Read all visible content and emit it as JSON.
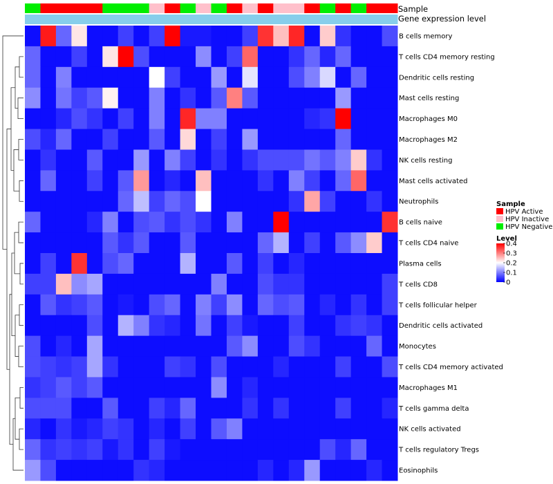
{
  "chart_data": {
    "type": "heatmap",
    "annotations": {
      "sample_label": "Sample",
      "expression_label": "Gene expression level"
    },
    "sample_groups": [
      "HPV Negative",
      "HPV Active",
      "HPV Active",
      "HPV Active",
      "HPV Active",
      "HPV Negative",
      "HPV Negative",
      "HPV Negative",
      "HPV Inactive",
      "HPV Active",
      "HPV Negative",
      "HPV Inactive",
      "HPV Negative",
      "HPV Active",
      "HPV Inactive",
      "HPV Active",
      "HPV Inactive",
      "HPV Inactive",
      "HPV Active",
      "HPV Negative",
      "HPV Active",
      "HPV Negative",
      "HPV Active",
      "HPV Active"
    ],
    "rows": [
      {
        "name": "B cells memory",
        "values": [
          0.01,
          0.38,
          0.08,
          0.22,
          0.01,
          0.01,
          0.05,
          0.01,
          0.05,
          0.4,
          0.02,
          0.02,
          0.01,
          0.01,
          0.05,
          0.36,
          0.25,
          0.37,
          0.01,
          0.24,
          0.04,
          0.01,
          0.01,
          0.06
        ]
      },
      {
        "name": "T cells CD4 memory resting",
        "values": [
          0.08,
          0.01,
          0.01,
          0.05,
          0.01,
          0.22,
          0.4,
          0.06,
          0.01,
          0.01,
          0.01,
          0.11,
          0.01,
          0.05,
          0.32,
          0.01,
          0.01,
          0.04,
          0.08,
          0.03,
          0.08,
          0.01,
          0.01,
          0.01
        ]
      },
      {
        "name": "Dendritic cells resting",
        "values": [
          0.08,
          0.01,
          0.1,
          0.01,
          0.01,
          0.01,
          0.01,
          0.01,
          0.2,
          0.05,
          0.01,
          0.01,
          0.12,
          0.01,
          0.18,
          0.01,
          0.01,
          0.06,
          0.1,
          0.17,
          0.01,
          0.08,
          0.01,
          0.01
        ]
      },
      {
        "name": "Mast cells resting",
        "values": [
          0.11,
          0.01,
          0.09,
          0.05,
          0.07,
          0.21,
          0.01,
          0.01,
          0.1,
          0.01,
          0.04,
          0.01,
          0.07,
          0.3,
          0.07,
          0.01,
          0.01,
          0.01,
          0.01,
          0.01,
          0.12,
          0.01,
          0.01,
          0.01
        ]
      },
      {
        "name": "Macrophages M0",
        "values": [
          0.01,
          0.01,
          0.03,
          0.06,
          0.04,
          0.01,
          0.05,
          0.01,
          0.1,
          0.01,
          0.37,
          0.1,
          0.1,
          0.01,
          0.01,
          0.01,
          0.01,
          0.01,
          0.03,
          0.04,
          0.4,
          0.01,
          0.01,
          0.01
        ]
      },
      {
        "name": "Macrophages M2",
        "values": [
          0.06,
          0.03,
          0.08,
          0.01,
          0.01,
          0.05,
          0.01,
          0.01,
          0.07,
          0.01,
          0.23,
          0.01,
          0.05,
          0.01,
          0.12,
          0.01,
          0.01,
          0.01,
          0.01,
          0.01,
          0.08,
          0.01,
          0.01,
          0.01
        ]
      },
      {
        "name": "NK cells resting",
        "values": [
          0.01,
          0.04,
          0.01,
          0.01,
          0.07,
          0.01,
          0.01,
          0.12,
          0.01,
          0.1,
          0.05,
          0.01,
          0.04,
          0.01,
          0.04,
          0.06,
          0.06,
          0.06,
          0.09,
          0.07,
          0.1,
          0.24,
          0.04,
          0.01
        ]
      },
      {
        "name": "Mast cells activated",
        "values": [
          0.01,
          0.08,
          0.01,
          0.01,
          0.05,
          0.01,
          0.07,
          0.28,
          0.01,
          0.03,
          0.01,
          0.25,
          0.01,
          0.01,
          0.01,
          0.04,
          0.01,
          0.1,
          0.05,
          0.01,
          0.08,
          0.32,
          0.01,
          0.01
        ]
      },
      {
        "name": "Neutrophils",
        "values": [
          0.01,
          0.01,
          0.01,
          0.01,
          0.01,
          0.01,
          0.08,
          0.15,
          0.05,
          0.08,
          0.06,
          0.2,
          0.01,
          0.01,
          0.01,
          0.01,
          0.01,
          0.04,
          0.27,
          0.05,
          0.01,
          0.01,
          0.04,
          0.01
        ]
      },
      {
        "name": "B cells naive",
        "values": [
          0.08,
          0.01,
          0.01,
          0.01,
          0.03,
          0.1,
          0.01,
          0.06,
          0.07,
          0.04,
          0.06,
          0.04,
          0.01,
          0.1,
          0.01,
          0.01,
          0.4,
          0.01,
          0.01,
          0.01,
          0.01,
          0.01,
          0.01,
          0.36
        ]
      },
      {
        "name": "T cells CD4 naive",
        "values": [
          0.01,
          0.01,
          0.01,
          0.01,
          0.01,
          0.07,
          0.04,
          0.07,
          0.01,
          0.01,
          0.07,
          0.01,
          0.01,
          0.01,
          0.01,
          0.08,
          0.14,
          0.01,
          0.05,
          0.01,
          0.07,
          0.11,
          0.24,
          0.01
        ]
      },
      {
        "name": "Plasma cells",
        "values": [
          0.01,
          0.05,
          0.01,
          0.36,
          0.01,
          0.06,
          0.08,
          0.01,
          0.01,
          0.01,
          0.14,
          0.01,
          0.01,
          0.07,
          0.01,
          0.05,
          0.01,
          0.03,
          0.01,
          0.01,
          0.01,
          0.01,
          0.01,
          0.01
        ]
      },
      {
        "name": "T cells CD8",
        "values": [
          0.05,
          0.05,
          0.25,
          0.11,
          0.13,
          0.01,
          0.01,
          0.01,
          0.01,
          0.01,
          0.01,
          0.01,
          0.1,
          0.01,
          0.01,
          0.06,
          0.04,
          0.04,
          0.01,
          0.01,
          0.01,
          0.01,
          0.01,
          0.05
        ]
      },
      {
        "name": "T cells follicular helper",
        "values": [
          0.01,
          0.07,
          0.04,
          0.05,
          0.07,
          0.01,
          0.02,
          0.01,
          0.06,
          0.08,
          0.01,
          0.1,
          0.05,
          0.11,
          0.01,
          0.08,
          0.06,
          0.07,
          0.01,
          0.03,
          0.01,
          0.04,
          0.01,
          0.05
        ]
      },
      {
        "name": "Dendritic cells activated",
        "values": [
          0.01,
          0.01,
          0.01,
          0.01,
          0.06,
          0.01,
          0.14,
          0.1,
          0.04,
          0.03,
          0.01,
          0.09,
          0.01,
          0.05,
          0.02,
          0.01,
          0.01,
          0.05,
          0.01,
          0.01,
          0.04,
          0.05,
          0.04,
          0.01
        ]
      },
      {
        "name": "Monocytes",
        "values": [
          0.06,
          0.01,
          0.03,
          0.01,
          0.13,
          0.01,
          0.01,
          0.01,
          0.01,
          0.01,
          0.01,
          0.01,
          0.01,
          0.07,
          0.11,
          0.01,
          0.01,
          0.06,
          0.04,
          0.01,
          0.01,
          0.01,
          0.08,
          0.01
        ]
      },
      {
        "name": "T cells CD4 memory activated",
        "values": [
          0.06,
          0.05,
          0.04,
          0.05,
          0.13,
          0.04,
          0.01,
          0.01,
          0.01,
          0.05,
          0.04,
          0.01,
          0.06,
          0.01,
          0.01,
          0.01,
          0.03,
          0.01,
          0.01,
          0.01,
          0.05,
          0.01,
          0.01,
          0.06
        ]
      },
      {
        "name": "Macrophages M1",
        "values": [
          0.04,
          0.05,
          0.07,
          0.05,
          0.07,
          0.01,
          0.01,
          0.01,
          0.01,
          0.01,
          0.01,
          0.01,
          0.11,
          0.01,
          0.03,
          0.01,
          0.01,
          0.01,
          0.01,
          0.01,
          0.01,
          0.01,
          0.01,
          0.01
        ]
      },
      {
        "name": "T cells gamma delta",
        "values": [
          0.06,
          0.06,
          0.06,
          0.01,
          0.01,
          0.07,
          0.01,
          0.01,
          0.05,
          0.03,
          0.08,
          0.01,
          0.01,
          0.01,
          0.04,
          0.01,
          0.04,
          0.01,
          0.01,
          0.01,
          0.05,
          0.01,
          0.01,
          0.03
        ]
      },
      {
        "name": "NK cells activated",
        "values": [
          0.03,
          0.01,
          0.04,
          0.02,
          0.03,
          0.05,
          0.04,
          0.01,
          0.03,
          0.01,
          0.05,
          0.01,
          0.07,
          0.1,
          0.01,
          0.01,
          0.01,
          0.01,
          0.01,
          0.01,
          0.01,
          0.01,
          0.01,
          0.01
        ]
      },
      {
        "name": "T cells regulatory  Tregs",
        "values": [
          0.08,
          0.04,
          0.05,
          0.04,
          0.05,
          0.02,
          0.04,
          0.01,
          0.05,
          0.02,
          0.01,
          0.01,
          0.01,
          0.01,
          0.01,
          0.01,
          0.01,
          0.01,
          0.01,
          0.06,
          0.03,
          0.08,
          0.01,
          0.01
        ]
      },
      {
        "name": "Eosinophils",
        "values": [
          0.12,
          0.06,
          0.01,
          0.01,
          0.01,
          0.01,
          0.01,
          0.04,
          0.03,
          0.01,
          0.01,
          0.01,
          0.01,
          0.01,
          0.01,
          0.03,
          0.01,
          0.03,
          0.12,
          0.01,
          0.01,
          0.01,
          0.03,
          0.01
        ]
      }
    ],
    "legend": {
      "sample_title": "Sample",
      "sample_items": [
        {
          "label": "HPV Active",
          "color": "#ff0000"
        },
        {
          "label": "HPV Inactive",
          "color": "#ffc0cb"
        },
        {
          "label": "HPV Negative",
          "color": "#00ee00"
        }
      ],
      "level_title": "Level",
      "level_ticks": [
        0.4,
        0.3,
        0.2,
        0.1,
        0
      ],
      "level_range": [
        0,
        0.4
      ]
    },
    "colors": {
      "low": "#0000ff",
      "mid": "#ffffff",
      "high": "#ff0000",
      "expression_bar": "#87ceeb"
    }
  }
}
